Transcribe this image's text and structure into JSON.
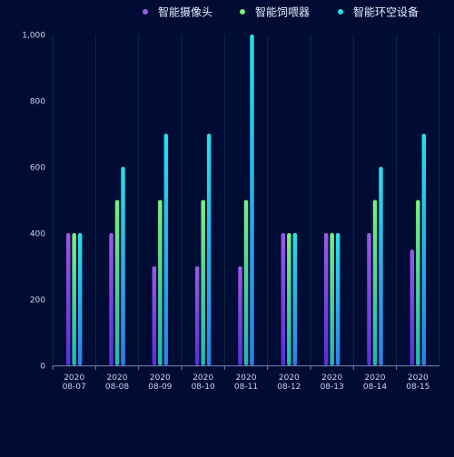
{
  "colors": {
    "background": "#000c33",
    "text": "#c8d3ea",
    "legend_text": "#e6edff",
    "grid": "#0f2a3a",
    "axis": "#6f86b8"
  },
  "chart_data": {
    "type": "bar",
    "title": "",
    "xlabel": "",
    "ylabel": "",
    "categories": [
      "2020\n08-07",
      "2020\n08-08",
      "2020\n08-09",
      "2020\n08-10",
      "2020\n08-11",
      "2020\n08-12",
      "2020\n08-13",
      "2020\n08-14",
      "2020\n08-15"
    ],
    "ylim": [
      0,
      1000
    ],
    "yticks": [
      0,
      200,
      400,
      600,
      800,
      1000
    ],
    "ytick_labels": [
      "0",
      "200",
      "400",
      "600",
      "800",
      "1,000"
    ],
    "legend_position": "top-right",
    "grid": true,
    "series": [
      {
        "name": "智能摄像头",
        "values": [
          400,
          400,
          300,
          300,
          300,
          400,
          400,
          400,
          350
        ],
        "color_top": "#9b59e6",
        "color_bottom": "#5a2fd6"
      },
      {
        "name": "智能饲喂器",
        "values": [
          400,
          500,
          500,
          500,
          500,
          400,
          400,
          500,
          500
        ],
        "color_top": "#7af07a",
        "color_bottom": "#1fb8b0"
      },
      {
        "name": "智能环空设备",
        "values": [
          400,
          600,
          700,
          700,
          1000,
          400,
          400,
          600,
          700
        ],
        "color_top": "#26e0e8",
        "color_bottom": "#2d7fe8"
      }
    ]
  }
}
